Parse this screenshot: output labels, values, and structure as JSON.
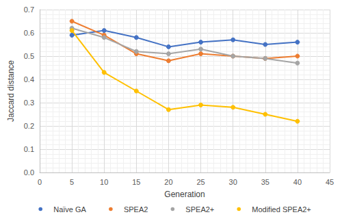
{
  "chart_data": {
    "type": "line",
    "x_label": "Generation",
    "y_label": "Jaccard distance",
    "x": [
      5,
      10,
      15,
      20,
      25,
      30,
      35,
      40
    ],
    "series": [
      {
        "name": "Naïve GA",
        "color": "#4472c4",
        "marker": "circle",
        "values": [
          0.59,
          0.61,
          0.58,
          0.54,
          0.56,
          0.57,
          0.55,
          0.56
        ]
      },
      {
        "name": "SPEA2",
        "color": "#ed7d31",
        "marker": "circle",
        "values": [
          0.65,
          0.59,
          0.51,
          0.48,
          0.51,
          0.5,
          0.49,
          0.5
        ]
      },
      {
        "name": "SPEA2+",
        "color": "#a5a5a5",
        "marker": "circle",
        "values": [
          0.62,
          0.58,
          0.52,
          0.51,
          0.53,
          0.5,
          0.49,
          0.47
        ]
      },
      {
        "name": "Modified SPEA2+",
        "color": "#ffc000",
        "marker": "circle",
        "values": [
          0.61,
          0.43,
          0.35,
          0.27,
          0.29,
          0.28,
          0.25,
          0.22
        ]
      }
    ],
    "xlim": [
      0,
      45
    ],
    "xticks": [
      0,
      5,
      10,
      15,
      20,
      25,
      30,
      35,
      40,
      45
    ],
    "ylim": [
      0,
      0.7
    ],
    "yticks": [
      {
        "value": 0,
        "label": "0.0"
      },
      0.1,
      0.2,
      0.3,
      0.4,
      0.5,
      0.6,
      0.7
    ],
    "grid": true,
    "legend": "bottom"
  }
}
